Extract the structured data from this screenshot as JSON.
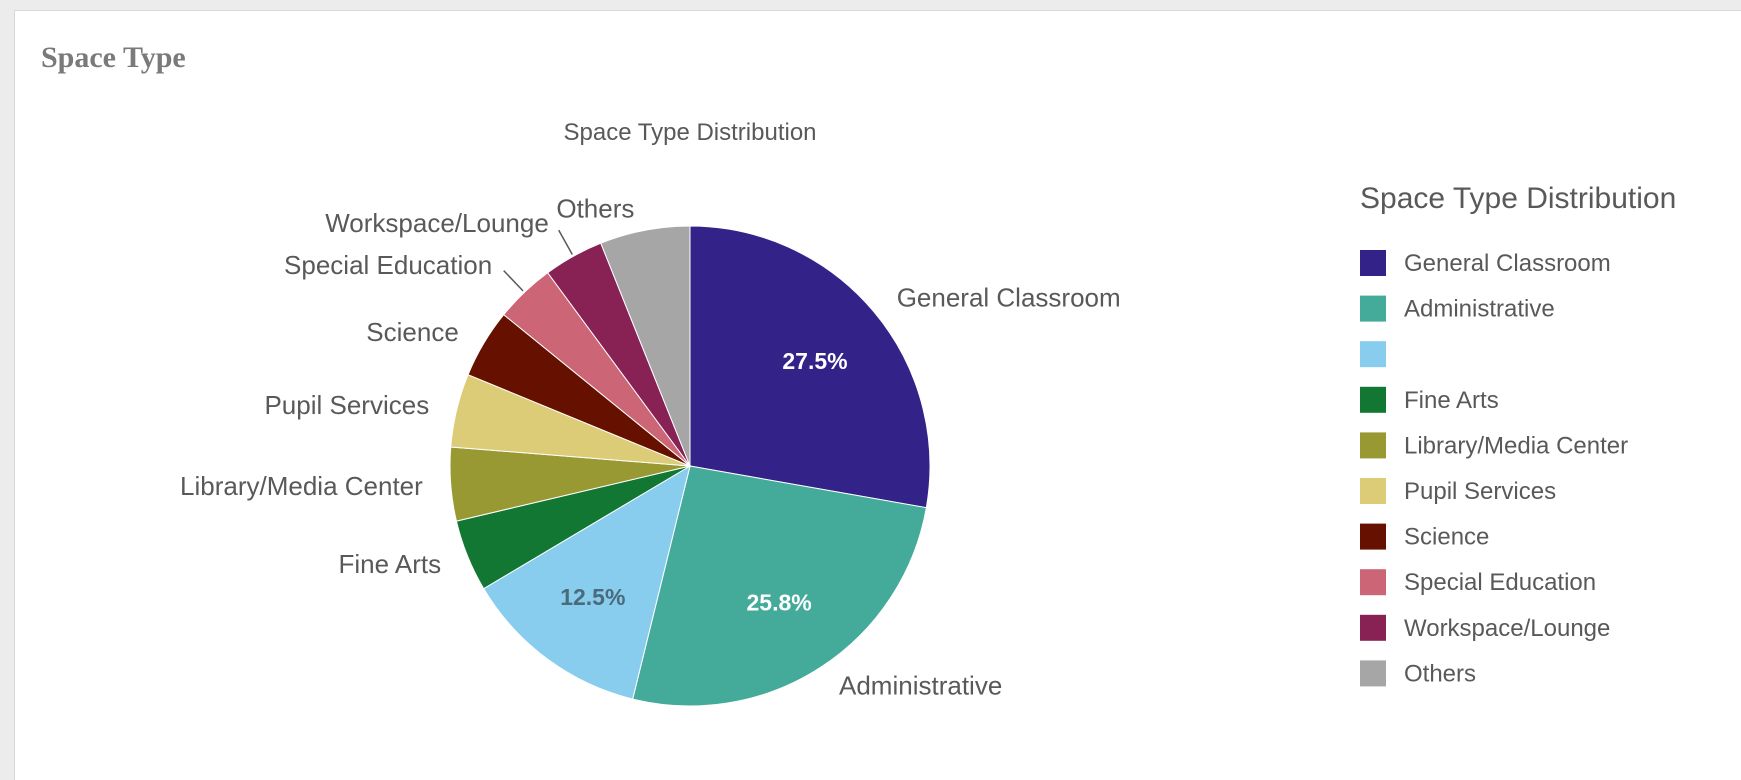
{
  "panel": {
    "title": "Space Type"
  },
  "chart_data": {
    "type": "pie",
    "title": "Space Type Distribution",
    "legend_title": "Space Type Distribution",
    "legend_position": "right",
    "slices": [
      {
        "label": "General Classroom",
        "value": 27.5,
        "color": "#332288",
        "slice_label": "General Classroom",
        "data_label": "27.5%",
        "data_label_color": "#ffffff"
      },
      {
        "label": "Administrative",
        "value": 25.8,
        "color": "#44aa99",
        "slice_label": "Administrative",
        "data_label": "25.8%",
        "data_label_color": "#ffffff"
      },
      {
        "label": "",
        "value": 12.5,
        "color": "#88ccee",
        "slice_label": "",
        "data_label": "12.5%",
        "data_label_color": "#4a6b7a"
      },
      {
        "label": "Fine Arts",
        "value": 4.8,
        "color": "#117733",
        "slice_label": "Fine Arts",
        "data_label": "",
        "data_label_color": "#ffffff"
      },
      {
        "label": "Library/Media Center",
        "value": 4.9,
        "color": "#999933",
        "slice_label": "Library/Media Center",
        "data_label": "",
        "data_label_color": "#ffffff"
      },
      {
        "label": "Pupil Services",
        "value": 4.9,
        "color": "#ddcc77",
        "slice_label": "Pupil Services",
        "data_label": "",
        "data_label_color": "#ffffff"
      },
      {
        "label": "Science",
        "value": 4.6,
        "color": "#661100",
        "slice_label": "Science",
        "data_label": "",
        "data_label_color": "#ffffff"
      },
      {
        "label": "Special Education",
        "value": 4.0,
        "color": "#cc6677",
        "slice_label": "Special Education",
        "data_label": "",
        "data_label_color": "#ffffff"
      },
      {
        "label": "Workspace/Lounge",
        "value": 4.0,
        "color": "#882255",
        "slice_label": "Workspace/Lounge",
        "data_label": "",
        "data_label_color": "#ffffff"
      },
      {
        "label": "Others",
        "value": 6.0,
        "color": "#a6a6a6",
        "slice_label": "Others",
        "data_label": "",
        "data_label_color": "#ffffff"
      }
    ]
  }
}
